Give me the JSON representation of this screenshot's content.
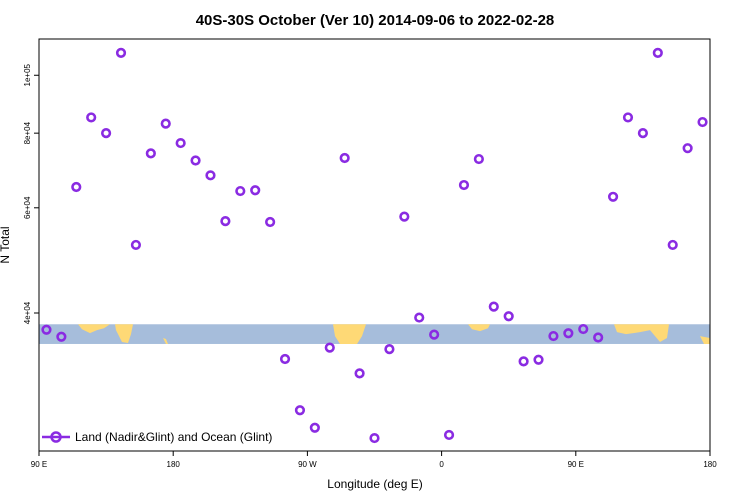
{
  "chart_data": {
    "type": "scatter",
    "title": "40S-30S October (Ver 10)   2014-09-06 to 2022-02-28",
    "xlabel": "Longitude (deg E)",
    "ylabel": "N Total",
    "y_scale": "log",
    "ylim": [
      23500,
      115000
    ],
    "x_ticks": [
      {
        "label": "90 E",
        "value": 90
      },
      {
        "label": "180",
        "value": 180
      },
      {
        "label": "90 W",
        "value": 270
      },
      {
        "label": "0",
        "value": 360
      },
      {
        "label": "90 E",
        "value": 450
      },
      {
        "label": "180",
        "value": 540
      }
    ],
    "xlim": [
      90,
      540
    ],
    "y_ticks": [
      {
        "label": "4e+04",
        "value": 40000
      },
      {
        "label": "6e+04",
        "value": 60000
      },
      {
        "label": "8e+04",
        "value": 80000
      },
      {
        "label": "1e+05",
        "value": 100000
      }
    ],
    "legend_position": "bottom-left",
    "map_strip": {
      "description": "latitude band 40S-30S map strip",
      "ocean_color": "#a6bddb",
      "land_color": "#fed976",
      "y_range": [
        35500,
        38300
      ]
    },
    "series": [
      {
        "name": "Land (Nadir&Glint) and Ocean (Glint)",
        "color": "#8a2be2",
        "x": [
          95,
          105,
          115,
          125,
          135,
          145,
          155,
          165,
          175,
          185,
          195,
          205,
          215,
          225,
          235,
          245,
          255,
          265,
          275,
          285,
          295,
          305,
          315,
          325,
          335,
          345,
          355,
          365,
          375,
          385,
          395,
          405,
          415,
          425,
          435,
          445,
          455,
          465,
          475,
          485,
          495,
          505,
          515,
          525,
          535
        ],
        "y": [
          37500,
          36500,
          65000,
          85000,
          80000,
          109000,
          52000,
          74000,
          83000,
          77000,
          72000,
          68000,
          57000,
          64000,
          64200,
          56800,
          33500,
          27500,
          25700,
          35000,
          72700,
          31700,
          24700,
          34800,
          58000,
          39300,
          36800,
          25000,
          65500,
          72400,
          41000,
          39500,
          33200,
          33400,
          36600,
          37000,
          37600,
          36400,
          62600,
          85000,
          80000,
          109000,
          52000,
          75500,
          83500
        ]
      }
    ]
  }
}
